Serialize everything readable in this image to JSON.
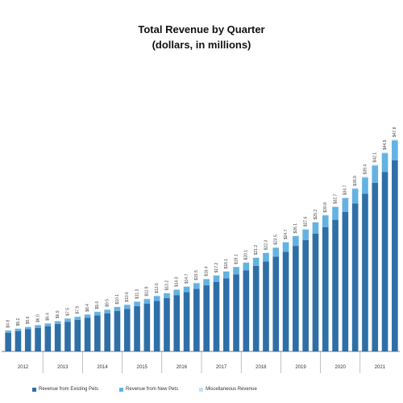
{
  "chart_data": {
    "type": "bar",
    "stacked": true,
    "title": "Total Revenue by Quarter",
    "subtitle": "(dollars, in millions)",
    "years": [
      "2012",
      "2013",
      "2014",
      "2015",
      "2016",
      "2017",
      "2018",
      "2019",
      "2020",
      "2021"
    ],
    "quarters_per_year": 4,
    "series": [
      {
        "name": "Revenue from Existing Pets",
        "color": "#2f6fa8",
        "values": [
          4.2,
          4.6,
          5.0,
          5.3,
          5.7,
          6.2,
          6.7,
          7.1,
          7.6,
          8.1,
          8.6,
          9.1,
          9.6,
          10.2,
          10.8,
          11.4,
          12.0,
          12.7,
          13.4,
          14.1,
          14.9,
          15.7,
          16.5,
          17.4,
          18.3,
          19.3,
          20.3,
          21.4,
          22.5,
          23.8,
          25.1,
          26.6,
          28.0,
          29.7,
          31.5,
          33.4,
          35.6,
          38.0,
          40.5,
          43.1
        ]
      },
      {
        "name": "Revenue from New Pets",
        "color": "#63b2e3",
        "values": [
          0.5,
          0.5,
          0.5,
          0.6,
          0.6,
          0.6,
          0.7,
          0.7,
          0.7,
          0.8,
          0.8,
          0.9,
          0.9,
          1.0,
          1.0,
          1.1,
          1.1,
          1.2,
          1.2,
          1.3,
          1.4,
          1.4,
          1.5,
          1.6,
          1.7,
          1.8,
          1.9,
          2.0,
          2.1,
          2.2,
          2.4,
          2.5,
          2.7,
          2.9,
          3.1,
          3.3,
          3.6,
          3.9,
          4.2,
          4.5
        ]
      },
      {
        "name": "Miscellaneous Revenue",
        "color": "#bfe2f4",
        "values": [
          0.1,
          0.1,
          0.1,
          0.1,
          0.1,
          0.1,
          0.1,
          0.1,
          0.1,
          0.1,
          0.1,
          0.1,
          0.1,
          0.1,
          0.1,
          0.1,
          0.1,
          0.1,
          0.1,
          0.1,
          0.1,
          0.1,
          0.1,
          0.1,
          0.1,
          0.1,
          0.1,
          0.1,
          0.1,
          0.1,
          0.1,
          0.1,
          0.1,
          0.1,
          0.1,
          0.1,
          0.2,
          0.2,
          0.2,
          0.2
        ]
      }
    ],
    "totals": [
      4.8,
      5.2,
      5.6,
      6.0,
      6.4,
      6.9,
      7.5,
      7.9,
      8.4,
      9.0,
      9.5,
      10.1,
      10.6,
      11.3,
      11.9,
      12.6,
      13.2,
      14.0,
      14.7,
      15.5,
      16.4,
      17.2,
      18.1,
      19.1,
      20.1,
      21.2,
      22.3,
      23.5,
      24.7,
      26.1,
      27.6,
      29.2,
      30.8,
      32.7,
      34.7,
      36.8,
      39.4,
      42.1,
      44.9,
      47.8
    ],
    "value_prefix": "$",
    "ylim": [
      0,
      52
    ],
    "grid": false,
    "legend_position": "bottom"
  }
}
